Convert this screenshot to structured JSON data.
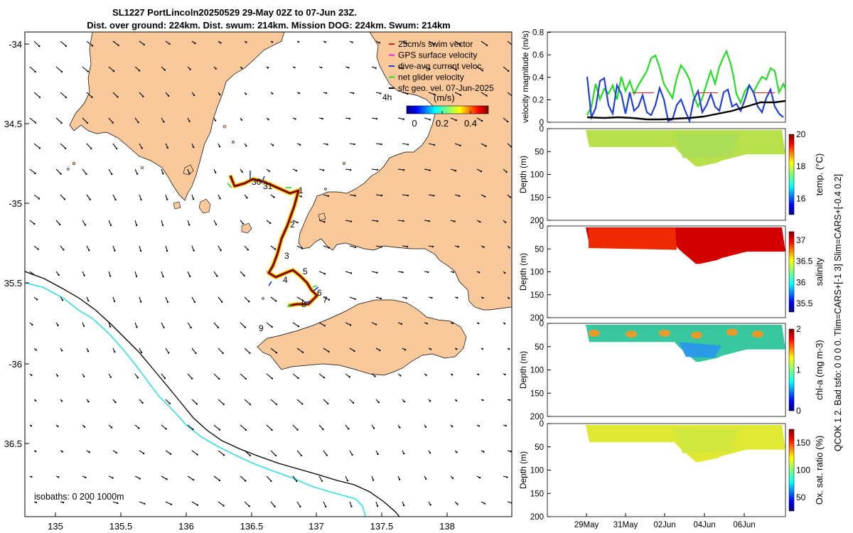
{
  "title": {
    "line1": "SL1227 PortLincoln20250529 29-May 02Z to 07-Jun 23Z.",
    "line2": "Dist. over ground: 224km. Dist. swum: 214km. Mission DOG: 224km. Swum: 214km"
  },
  "map": {
    "lon_ticks": [
      "135",
      "135.5",
      "136",
      "136.5",
      "137",
      "137.5",
      "138"
    ],
    "lat_ticks": [
      "-34",
      "34.5",
      "-35",
      "35.5",
      "-36",
      "36.5"
    ],
    "legend": [
      {
        "label": "25cm/s swim vector",
        "color": "#d81b1b"
      },
      {
        "label": "GPS surface velocity",
        "color": "#e030e0"
      },
      {
        "label": "dive-avg current veloc.",
        "color": "#1f3fd8"
      },
      {
        "label": "net glider velocity",
        "color": "#22dd22"
      },
      {
        "label": "sfc geo. vel. 07-Jun-2025",
        "color": "#000000"
      }
    ],
    "legend_time": "4h",
    "colorbar_title": "(m/s)",
    "colorbar_ticks": [
      "0",
      "0.2",
      "0.4"
    ],
    "day_labels": [
      "1",
      "2",
      "3",
      "4",
      "5",
      "6",
      "7",
      "8",
      "9",
      "30",
      "31"
    ],
    "isobaths_label": "isobaths: 0   200  1000m",
    "colors": {
      "land": "#f9c89b",
      "isobath200": "#000000",
      "isobath1000": "#33dddd"
    }
  },
  "velocity_panel": {
    "ylabel": "velocity magnitude (m/s)",
    "yticks": [
      "0",
      "0.2",
      "0.4",
      "0.6",
      "0.8"
    ]
  },
  "sections": [
    {
      "label": "temp. (°C)",
      "cticks": [
        "20",
        "18",
        "16"
      ],
      "cmin": 15,
      "cmax": 20,
      "ticks_values": [
        20,
        18,
        16
      ]
    },
    {
      "label": "salinity",
      "cticks": [
        "37",
        "36.5",
        "36",
        "35.5"
      ],
      "cmin": 35.3,
      "cmax": 37.2,
      "ticks_values": [
        37,
        36.5,
        36,
        35.5
      ]
    },
    {
      "label": "chl-a (mg m-3)",
      "cticks": [
        "2",
        "1",
        "0"
      ],
      "cmin": 0,
      "cmax": 2,
      "ticks_values": [
        2,
        1,
        0
      ]
    },
    {
      "label": "Ox. sat. ratio (%)",
      "cticks": [
        "150",
        "100",
        "50"
      ],
      "cmin": 25,
      "cmax": 175,
      "ticks_values": [
        150,
        100,
        50
      ]
    }
  ],
  "depth_label": "Depth (m)",
  "depth_ticks": [
    "0",
    "50",
    "100",
    "150",
    "200"
  ],
  "time_ticks": [
    "29May",
    "31May",
    "02Jun",
    "04Jun",
    "06Jun"
  ],
  "side_note": "QCOK 1  2. Bad tsfo: 0  0  0  0. Tlim=CARS+[-1 3] Slim=CARS+[-0.4 0.2]"
}
